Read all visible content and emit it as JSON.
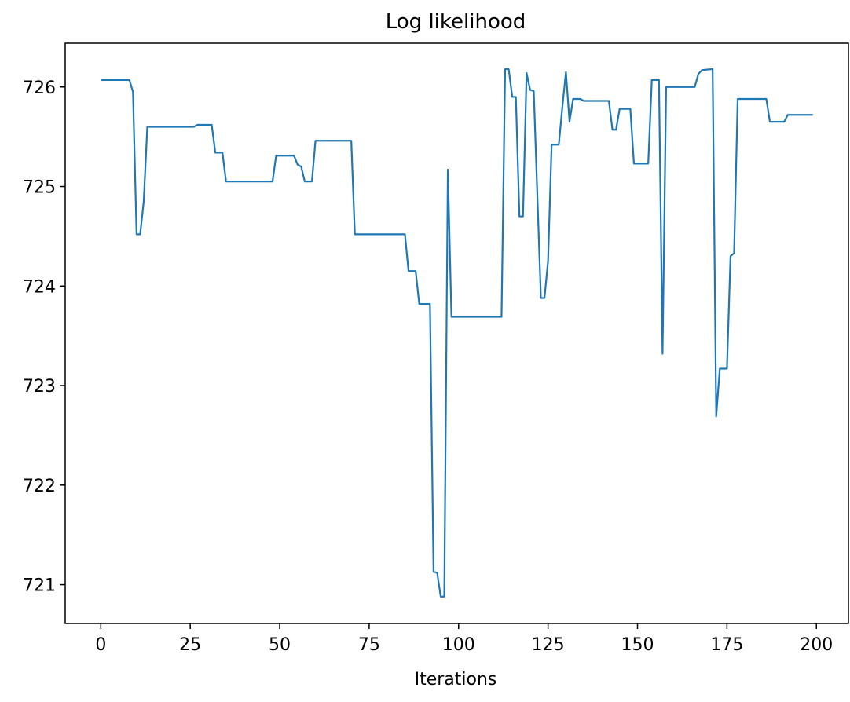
{
  "chart_data": {
    "type": "line",
    "title": "Log likelihood",
    "x_label": "Iterations",
    "x": [
      0,
      8,
      9,
      10,
      11,
      12,
      13,
      26,
      27,
      31,
      32,
      34,
      35,
      48,
      49,
      54,
      55,
      56,
      57,
      59,
      60,
      70,
      71,
      85,
      86,
      88,
      89,
      92,
      93,
      94,
      95,
      96,
      97,
      98,
      112,
      113,
      114,
      115,
      116,
      117,
      118,
      119,
      120,
      121,
      123,
      124,
      125,
      126,
      128,
      129,
      130,
      131,
      132,
      134,
      135,
      142,
      143,
      144,
      145,
      148,
      149,
      153,
      154,
      156,
      157,
      158,
      166,
      167,
      168,
      171,
      172,
      173,
      175,
      176,
      177,
      178,
      186,
      187,
      191,
      192,
      199
    ],
    "series": [
      {
        "name": "Log likelihood",
        "color": "#1f77b4",
        "values": [
          726.07,
          726.07,
          725.95,
          724.52,
          724.52,
          724.85,
          725.6,
          725.6,
          725.62,
          725.62,
          725.34,
          725.34,
          725.05,
          725.05,
          725.31,
          725.31,
          725.22,
          725.2,
          725.05,
          725.05,
          725.46,
          725.46,
          724.52,
          724.52,
          724.15,
          724.15,
          723.82,
          723.82,
          721.13,
          721.12,
          720.88,
          720.88,
          725.17,
          723.69,
          723.69,
          726.18,
          726.18,
          725.9,
          725.9,
          724.7,
          724.7,
          726.14,
          725.97,
          725.96,
          723.88,
          723.88,
          724.25,
          725.42,
          725.42,
          725.8,
          726.15,
          725.65,
          725.88,
          725.88,
          725.86,
          725.86,
          725.57,
          725.57,
          725.78,
          725.78,
          725.23,
          725.23,
          726.07,
          726.07,
          723.32,
          726.0,
          726.0,
          726.13,
          726.17,
          726.18,
          722.69,
          723.17,
          723.17,
          724.3,
          724.33,
          725.88,
          725.88,
          725.65,
          725.65,
          725.72,
          725.72
        ]
      }
    ],
    "xlim": [
      -9.95,
      208.95
    ],
    "ylim": [
      720.61,
      726.44
    ],
    "xticks": [
      0,
      25,
      50,
      75,
      100,
      125,
      150,
      175,
      200
    ],
    "yticks": [
      721,
      722,
      723,
      724,
      725,
      726
    ]
  }
}
